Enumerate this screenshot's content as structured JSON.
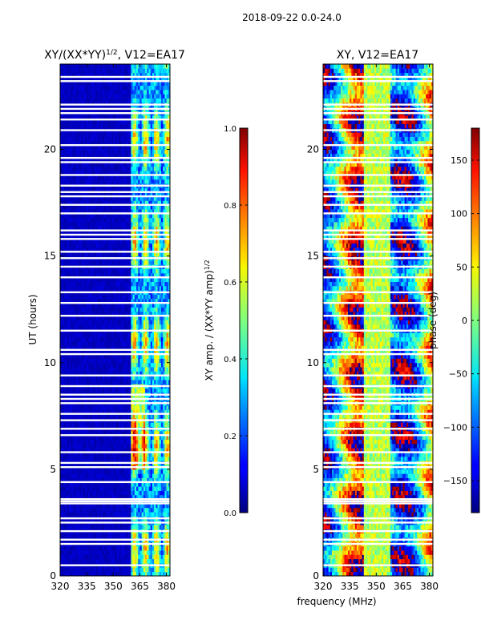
{
  "figure": {
    "suptitle": "2018-09-22 0.0-24.0",
    "shared_xlabel": "frequency (MHz)"
  },
  "chart_data": [
    {
      "type": "heatmap",
      "title_main": "XY/(XX*YY)",
      "title_sup": "1/2",
      "title_rest": ", V12=EA17",
      "xlabel": "",
      "ylabel": "UT (hours)",
      "xlim": [
        320,
        382
      ],
      "ylim": [
        0,
        24
      ],
      "xticks": [
        320,
        335,
        350,
        365,
        380
      ],
      "yticks": [
        0,
        5,
        10,
        15,
        20
      ],
      "colorbar": {
        "label_main": "XY amp. / (XX*YY amp)",
        "label_sup": "1/2",
        "range": [
          0.0,
          1.0
        ],
        "ticks": [
          "0.0",
          "0.2",
          "0.4",
          "0.6",
          "0.8",
          "1.0"
        ],
        "colormap": "jet"
      },
      "signal_band_mhz": [
        360,
        382
      ],
      "description_values": "low amplitude (~0.05) below 360 MHz, amplitude 0.3-0.9 between 360 and 382 MHz"
    },
    {
      "type": "heatmap",
      "title_main": "XY, V12=EA17",
      "xlabel": "frequency (MHz)",
      "ylabel": "",
      "xlim": [
        320,
        382
      ],
      "ylim": [
        0,
        24
      ],
      "xticks": [
        320,
        335,
        350,
        365,
        380
      ],
      "yticks": [
        0,
        5,
        10,
        15,
        20
      ],
      "colorbar": {
        "label_main": "phase (deg)",
        "range": [
          -180,
          180
        ],
        "ticks": [
          "−150",
          "−100",
          "−50",
          "0",
          "50",
          "100",
          "150"
        ],
        "tick_values": [
          -150,
          -100,
          -50,
          0,
          50,
          100,
          150
        ],
        "colormap": "jet"
      }
    }
  ],
  "flagged_hours": [
    0.5,
    1.5,
    1.7,
    2.1,
    2.5,
    2.7,
    3.4,
    3.5,
    3.6,
    4.4,
    5.1,
    5.3,
    5.8,
    6.6,
    6.9,
    7.3,
    7.6,
    8.1,
    8.3,
    8.5,
    8.9,
    9.4,
    10.4,
    10.6,
    11.5,
    12.2,
    12.8,
    13.3,
    14.0,
    14.5,
    14.9,
    15.2,
    15.8,
    16.0,
    16.2,
    17.0,
    17.4,
    17.8,
    18.0,
    18.3,
    18.8,
    19.4,
    19.6,
    20.2,
    20.9,
    21.4,
    21.7,
    21.9,
    22.1,
    23.2,
    23.4
  ]
}
